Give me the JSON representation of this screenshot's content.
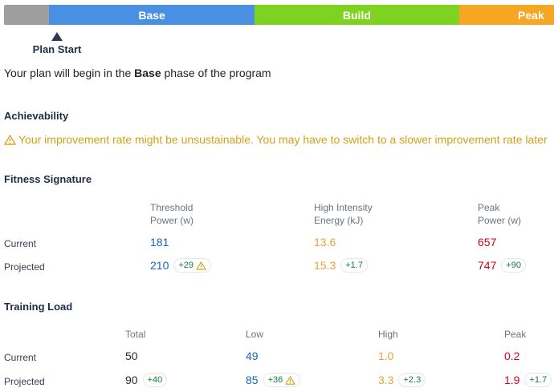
{
  "phases": {
    "base": "Base",
    "build": "Build",
    "peak": "Peak"
  },
  "plan_start": {
    "label": "Plan Start"
  },
  "intro": {
    "prefix": "Your plan will begin in the ",
    "phase": "Base",
    "suffix": " phase of the program"
  },
  "achievability": {
    "title": "Achievability",
    "warning": "Your improvement rate might be unsustainable. You may have to switch to a slower improvement rate later",
    "warning_icon": "warning-triangle-icon"
  },
  "fitness_signature": {
    "title": "Fitness Signature",
    "columns": [
      {
        "line1": "Threshold",
        "line2": "Power (w)"
      },
      {
        "line1": "High Intensity",
        "line2": "Energy (kJ)"
      },
      {
        "line1": "Peak",
        "line2": "Power (w)"
      }
    ],
    "rows": [
      {
        "label": "Current",
        "values": [
          "181",
          "13.6",
          "657"
        ]
      },
      {
        "label": "Projected",
        "values": [
          "210",
          "15.3",
          "747"
        ],
        "deltas": [
          "+29",
          "+1.7",
          "+90"
        ]
      }
    ]
  },
  "training_load": {
    "title": "Training Load",
    "columns": [
      "Total",
      "Low",
      "High",
      "Peak"
    ],
    "rows": [
      {
        "label": "Current",
        "values": [
          "50",
          "49",
          "1.0",
          "0.2"
        ]
      },
      {
        "label": "Projected",
        "values": [
          "90",
          "85",
          "3.3",
          "1.9"
        ],
        "deltas": [
          "+40",
          "+36",
          "+2.3",
          "+1.7"
        ]
      }
    ]
  },
  "colors": {
    "base": "#4a90e2",
    "build": "#7ed321",
    "peak": "#f5a623",
    "pre": "#9e9e9e",
    "warning": "#d4a017",
    "blue_value": "#1565c0",
    "orange_value": "#e6a23c",
    "red_value": "#d0021b",
    "delta_green": "#15803d"
  }
}
